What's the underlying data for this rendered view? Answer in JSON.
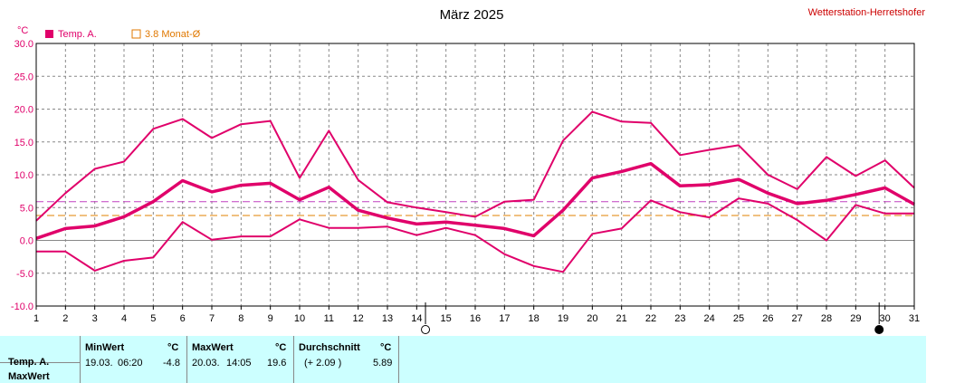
{
  "header": {
    "title": "März 2025",
    "station": "Wetterstation-Herretshofer",
    "unit": "°C"
  },
  "legend": [
    {
      "label": "Temp. A.",
      "color": "#e0006a",
      "style": "filled"
    },
    {
      "label": "3.8 Monat-Ø",
      "color": "#e07800",
      "style": "outline"
    }
  ],
  "colors": {
    "series": "#e0006a",
    "avg_line_month": "#e08000",
    "avg_line_mean": "#c040c0",
    "grid": "#888888",
    "summary_bg": "#ccffff"
  },
  "chart_data": {
    "type": "line",
    "title": "März 2025",
    "ylabel": "°C",
    "ylim": [
      -10,
      30
    ],
    "yticks": [
      "30.0",
      "25.0",
      "20.0",
      "15.0",
      "10.0",
      "5.0",
      "0.0",
      "-5.0",
      "-10.0"
    ],
    "x": [
      1,
      2,
      3,
      4,
      5,
      6,
      7,
      8,
      9,
      10,
      11,
      12,
      13,
      14,
      15,
      16,
      17,
      18,
      19,
      20,
      21,
      22,
      23,
      24,
      25,
      26,
      27,
      28,
      29,
      30,
      31
    ],
    "series": [
      {
        "name": "Temp. A.",
        "role": "max",
        "values": [
          3.0,
          7.2,
          10.9,
          12.0,
          17.0,
          18.5,
          15.6,
          17.7,
          18.2,
          9.5,
          16.7,
          9.2,
          5.8,
          5.0,
          4.3,
          3.6,
          5.9,
          6.2,
          15.2,
          19.6,
          18.1,
          17.9,
          13.0,
          13.8,
          14.5,
          10.0,
          7.8,
          12.7,
          9.8,
          12.2,
          8.0
        ]
      },
      {
        "name": "Temp. A.",
        "role": "mean",
        "values": [
          0.3,
          1.8,
          2.2,
          3.6,
          5.9,
          9.1,
          7.4,
          8.4,
          8.7,
          6.2,
          8.1,
          4.6,
          3.4,
          2.5,
          2.8,
          2.3,
          1.8,
          0.7,
          4.6,
          9.5,
          10.5,
          11.7,
          8.3,
          8.5,
          9.3,
          7.2,
          5.6,
          6.1,
          7.0,
          8.0,
          5.5
        ]
      },
      {
        "name": "Temp. A.",
        "role": "min",
        "values": [
          -1.7,
          -1.7,
          -4.6,
          -3.1,
          -2.6,
          2.8,
          0.1,
          0.6,
          0.6,
          3.2,
          1.9,
          1.9,
          2.1,
          0.8,
          1.9,
          0.8,
          -2.1,
          -3.9,
          -4.8,
          1.0,
          1.8,
          6.1,
          4.3,
          3.5,
          6.4,
          5.6,
          3.1,
          0.0,
          5.4,
          4.1,
          4.1
        ]
      }
    ],
    "reference_lines": [
      {
        "label": "3.8 Monat-Ø",
        "value": 3.8
      },
      {
        "value": 5.89
      }
    ],
    "markers": [
      {
        "x": 14.3,
        "symbol": "full-moon-icon"
      },
      {
        "x": 29.8,
        "symbol": "new-moon-icon"
      }
    ],
    "grid": true
  },
  "summary": {
    "row_labels": [
      "Temp. A.",
      "MaxWert"
    ],
    "min": {
      "label": "MinWert",
      "unit": "°C",
      "date": "19.03.",
      "time": "06:20",
      "value": "-4.8"
    },
    "max": {
      "label": "MaxWert",
      "unit": "°C",
      "date": "20.03.",
      "time": "14:05",
      "value": "19.6"
    },
    "avg": {
      "label": "Durchschnitt",
      "unit": "°C",
      "delta": "(+ 2.09 )",
      "value": "5.89"
    }
  }
}
